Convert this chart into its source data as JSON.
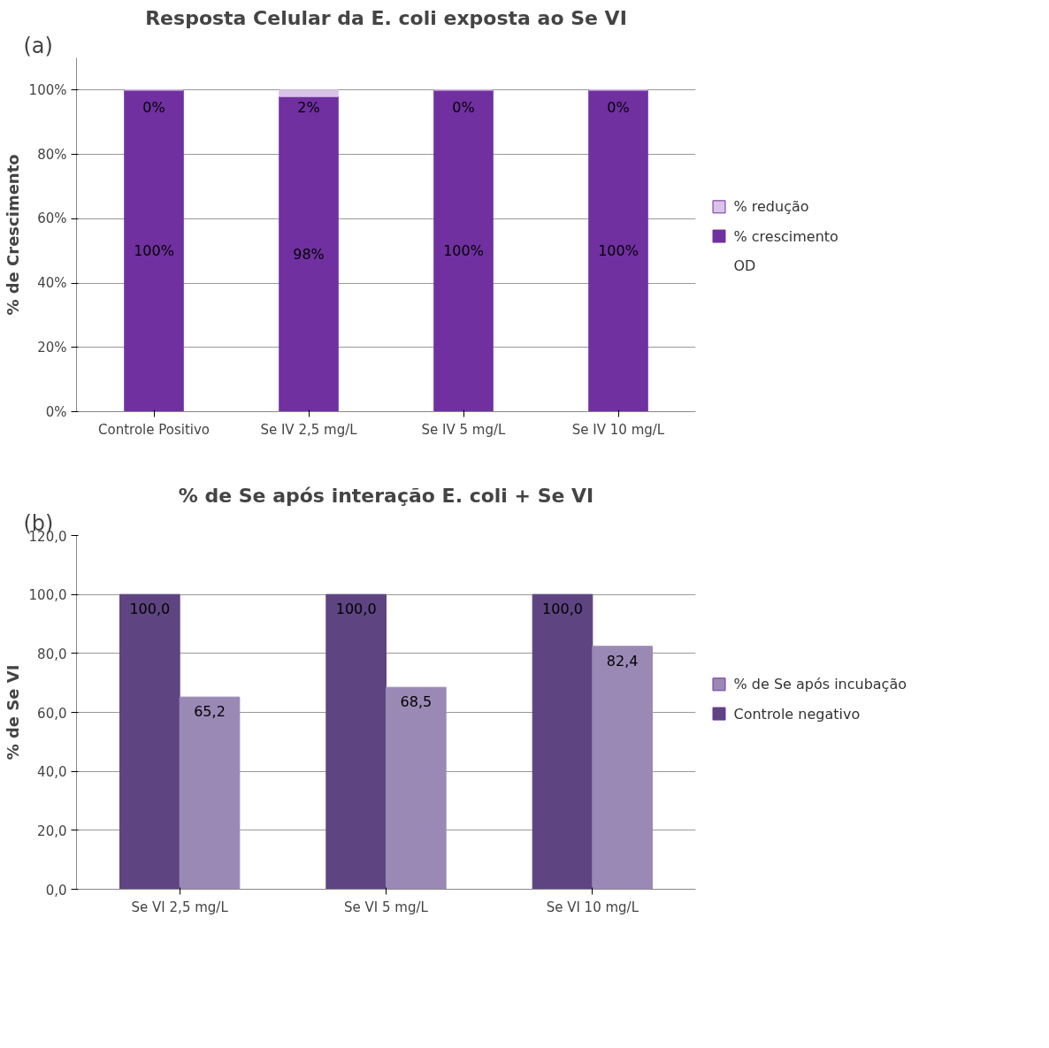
{
  "chart_data": [
    {
      "type": "bar",
      "title": "Resposta Celular da E. coli exposta ao Se VI",
      "ylabel": "% de Crescimento",
      "stacked": true,
      "categories": [
        "Controle Positivo",
        "Se IV 2,5 mg/L",
        "Se IV 5 mg/L",
        "Se IV 10 mg/L"
      ],
      "series": [
        {
          "name": "% crescimento",
          "color": "#7030a0",
          "values": [
            100,
            98,
            100,
            100
          ],
          "value_labels": [
            "100%",
            "98%",
            "100%",
            "100%"
          ]
        },
        {
          "name": "% redução",
          "color": "#d9c3e9",
          "values": [
            0,
            2,
            0,
            0
          ],
          "value_labels": [
            "0%",
            "2%",
            "0%",
            "0%"
          ]
        }
      ],
      "ylim": [
        0,
        110
      ],
      "yticks": [
        {
          "value": 0,
          "label": "0%"
        },
        {
          "value": 20,
          "label": "20%"
        },
        {
          "value": 40,
          "label": "40%"
        },
        {
          "value": 60,
          "label": "60%"
        },
        {
          "value": 80,
          "label": "80%"
        },
        {
          "value": 100,
          "label": "100%"
        }
      ],
      "grid": "y",
      "legend": "right",
      "annotations": [
        "(a)",
        "OD"
      ]
    },
    {
      "type": "bar",
      "title": "% de Se após interação E. coli + Se VI",
      "ylabel": "% de Se VI",
      "categories": [
        "Se VI 2,5 mg/L",
        "Se VI 5 mg/L",
        "Se VI 10 mg/L"
      ],
      "series": [
        {
          "name": "Controle negativo",
          "color": "#5e4480",
          "values": [
            100,
            100,
            100
          ],
          "value_labels": [
            "100,0",
            "100,0",
            "100,0"
          ]
        },
        {
          "name": "% de Se após incubação",
          "color": "#9a89b5",
          "values": [
            65.2,
            68.5,
            82.4
          ],
          "value_labels": [
            "65,2",
            "68,5",
            "82,4"
          ]
        }
      ],
      "ylim": [
        0,
        120
      ],
      "yticks": [
        {
          "value": 0,
          "label": "0,0"
        },
        {
          "value": 20,
          "label": "20,0"
        },
        {
          "value": 40,
          "label": "40,0"
        },
        {
          "value": 60,
          "label": "60,0"
        },
        {
          "value": 80,
          "label": "80,0"
        },
        {
          "value": 100,
          "label": "100,0"
        },
        {
          "value": 120,
          "label": "120,0"
        }
      ],
      "grid": "y",
      "legend": "right",
      "annotations": [
        "(b)"
      ]
    }
  ]
}
